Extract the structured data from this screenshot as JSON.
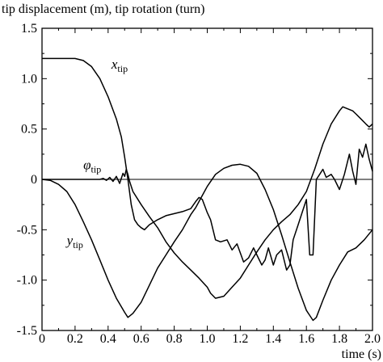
{
  "chart_data": {
    "type": "line",
    "ylabel": "tip displacement (m), tip rotation (turn)",
    "xlabel": "time (s)",
    "xlim": [
      0,
      2.0
    ],
    "ylim": [
      -1.5,
      1.5
    ],
    "xticks": [
      "0",
      "0.2",
      "0.4",
      "0.6",
      "0.8",
      "1.0",
      "1.2",
      "1.4",
      "1.6",
      "1.8",
      "2.0"
    ],
    "yticks": [
      "1.5",
      "1.0",
      "0.5",
      "0",
      "-0.5",
      "-1.0",
      "-1.5"
    ],
    "grid": false,
    "zero_line": true,
    "series": [
      {
        "id": "x_tip",
        "label_main": "x",
        "label_sub": "tip",
        "color": "#000000",
        "points": [
          [
            0,
            1.2
          ],
          [
            0.1,
            1.2
          ],
          [
            0.2,
            1.2
          ],
          [
            0.25,
            1.18
          ],
          [
            0.3,
            1.12
          ],
          [
            0.35,
            1.0
          ],
          [
            0.4,
            0.82
          ],
          [
            0.45,
            0.6
          ],
          [
            0.48,
            0.42
          ],
          [
            0.5,
            0.22
          ],
          [
            0.52,
            0.0
          ],
          [
            0.54,
            -0.25
          ],
          [
            0.56,
            -0.4
          ],
          [
            0.58,
            -0.45
          ],
          [
            0.6,
            -0.48
          ],
          [
            0.62,
            -0.5
          ],
          [
            0.65,
            -0.45
          ],
          [
            0.7,
            -0.4
          ],
          [
            0.75,
            -0.36
          ],
          [
            0.8,
            -0.34
          ],
          [
            0.85,
            -0.32
          ],
          [
            0.9,
            -0.29
          ],
          [
            0.93,
            -0.22
          ],
          [
            0.95,
            -0.18
          ],
          [
            0.97,
            -0.2
          ],
          [
            1.0,
            -0.33
          ],
          [
            1.02,
            -0.4
          ],
          [
            1.05,
            -0.6
          ],
          [
            1.08,
            -0.62
          ],
          [
            1.12,
            -0.6
          ],
          [
            1.15,
            -0.7
          ],
          [
            1.18,
            -0.64
          ],
          [
            1.22,
            -0.82
          ],
          [
            1.25,
            -0.78
          ],
          [
            1.28,
            -0.68
          ],
          [
            1.3,
            -0.75
          ],
          [
            1.33,
            -0.85
          ],
          [
            1.35,
            -0.8
          ],
          [
            1.37,
            -0.68
          ],
          [
            1.4,
            -0.85
          ],
          [
            1.42,
            -0.75
          ],
          [
            1.45,
            -0.7
          ],
          [
            1.48,
            -0.9
          ],
          [
            1.5,
            -0.85
          ],
          [
            1.52,
            -0.6
          ],
          [
            1.55,
            -0.45
          ],
          [
            1.58,
            -0.3
          ],
          [
            1.6,
            -0.2
          ],
          [
            1.62,
            -0.75
          ],
          [
            1.64,
            -0.75
          ],
          [
            1.66,
            0.0
          ],
          [
            1.68,
            0.05
          ],
          [
            1.7,
            0.1
          ],
          [
            1.72,
            0.02
          ],
          [
            1.75,
            0.05
          ],
          [
            1.77,
            0.0
          ],
          [
            1.8,
            -0.1
          ],
          [
            1.83,
            0.05
          ],
          [
            1.86,
            0.25
          ],
          [
            1.88,
            0.08
          ],
          [
            1.9,
            -0.05
          ],
          [
            1.92,
            0.3
          ],
          [
            1.94,
            0.22
          ],
          [
            1.96,
            0.35
          ],
          [
            1.98,
            0.2
          ],
          [
            2.0,
            0.08
          ]
        ]
      },
      {
        "id": "y_tip",
        "label_main": "y",
        "label_sub": "tip",
        "color": "#000000",
        "points": [
          [
            0,
            0
          ],
          [
            0.05,
            -0.01
          ],
          [
            0.1,
            -0.05
          ],
          [
            0.15,
            -0.12
          ],
          [
            0.2,
            -0.25
          ],
          [
            0.25,
            -0.42
          ],
          [
            0.3,
            -0.6
          ],
          [
            0.35,
            -0.8
          ],
          [
            0.4,
            -1.0
          ],
          [
            0.45,
            -1.18
          ],
          [
            0.5,
            -1.32
          ],
          [
            0.52,
            -1.37
          ],
          [
            0.55,
            -1.33
          ],
          [
            0.6,
            -1.22
          ],
          [
            0.65,
            -1.05
          ],
          [
            0.7,
            -0.88
          ],
          [
            0.75,
            -0.75
          ],
          [
            0.8,
            -0.62
          ],
          [
            0.85,
            -0.5
          ],
          [
            0.9,
            -0.35
          ],
          [
            0.93,
            -0.28
          ],
          [
            0.95,
            -0.22
          ],
          [
            1.0,
            -0.07
          ],
          [
            1.05,
            0.05
          ],
          [
            1.1,
            0.11
          ],
          [
            1.15,
            0.14
          ],
          [
            1.2,
            0.15
          ],
          [
            1.25,
            0.13
          ],
          [
            1.3,
            0.06
          ],
          [
            1.35,
            -0.1
          ],
          [
            1.4,
            -0.3
          ],
          [
            1.45,
            -0.55
          ],
          [
            1.5,
            -0.82
          ],
          [
            1.55,
            -1.08
          ],
          [
            1.6,
            -1.3
          ],
          [
            1.64,
            -1.4
          ],
          [
            1.66,
            -1.37
          ],
          [
            1.7,
            -1.2
          ],
          [
            1.75,
            -1.0
          ],
          [
            1.8,
            -0.85
          ],
          [
            1.85,
            -0.72
          ],
          [
            1.9,
            -0.68
          ],
          [
            1.95,
            -0.6
          ],
          [
            2.0,
            -0.5
          ]
        ]
      },
      {
        "id": "phi_tip",
        "label_main": "φ",
        "label_sub": "tip",
        "color": "#000000",
        "points": [
          [
            0,
            0
          ],
          [
            0.35,
            0
          ],
          [
            0.37,
            0.01
          ],
          [
            0.39,
            -0.01
          ],
          [
            0.41,
            0.02
          ],
          [
            0.43,
            -0.02
          ],
          [
            0.45,
            0.03
          ],
          [
            0.47,
            -0.04
          ],
          [
            0.49,
            0.06
          ],
          [
            0.5,
            0.03
          ],
          [
            0.51,
            0.1
          ],
          [
            0.52,
            0.05
          ],
          [
            0.53,
            -0.02
          ],
          [
            0.55,
            -0.12
          ],
          [
            0.6,
            -0.25
          ],
          [
            0.65,
            -0.37
          ],
          [
            0.7,
            -0.48
          ],
          [
            0.75,
            -0.62
          ],
          [
            0.8,
            -0.73
          ],
          [
            0.85,
            -0.82
          ],
          [
            0.9,
            -0.9
          ],
          [
            0.95,
            -0.98
          ],
          [
            1.0,
            -1.07
          ],
          [
            1.02,
            -1.13
          ],
          [
            1.05,
            -1.18
          ],
          [
            1.1,
            -1.16
          ],
          [
            1.15,
            -1.07
          ],
          [
            1.2,
            -0.98
          ],
          [
            1.25,
            -0.85
          ],
          [
            1.3,
            -0.72
          ],
          [
            1.35,
            -0.6
          ],
          [
            1.4,
            -0.5
          ],
          [
            1.45,
            -0.42
          ],
          [
            1.5,
            -0.35
          ],
          [
            1.55,
            -0.25
          ],
          [
            1.6,
            -0.12
          ],
          [
            1.65,
            0.1
          ],
          [
            1.7,
            0.35
          ],
          [
            1.75,
            0.55
          ],
          [
            1.8,
            0.68
          ],
          [
            1.82,
            0.72
          ],
          [
            1.85,
            0.7
          ],
          [
            1.88,
            0.68
          ],
          [
            1.9,
            0.65
          ],
          [
            1.93,
            0.6
          ],
          [
            1.96,
            0.55
          ],
          [
            1.98,
            0.52
          ],
          [
            2.0,
            0.55
          ]
        ]
      }
    ],
    "annotations": [
      {
        "series": "x_tip",
        "main": "x",
        "sub": "tip",
        "at": [
          0.42,
          1.1
        ],
        "line_to": [
          0.38,
          1.05
        ]
      },
      {
        "series": "phi_tip",
        "main": "φ",
        "sub": "tip",
        "at": [
          0.25,
          0.1
        ],
        "line_to": [
          0.37,
          0.02
        ]
      },
      {
        "series": "y_tip",
        "main": "y",
        "sub": "tip",
        "at": [
          0.15,
          -0.65
        ],
        "line_to": [
          0.25,
          -0.5
        ]
      }
    ]
  }
}
